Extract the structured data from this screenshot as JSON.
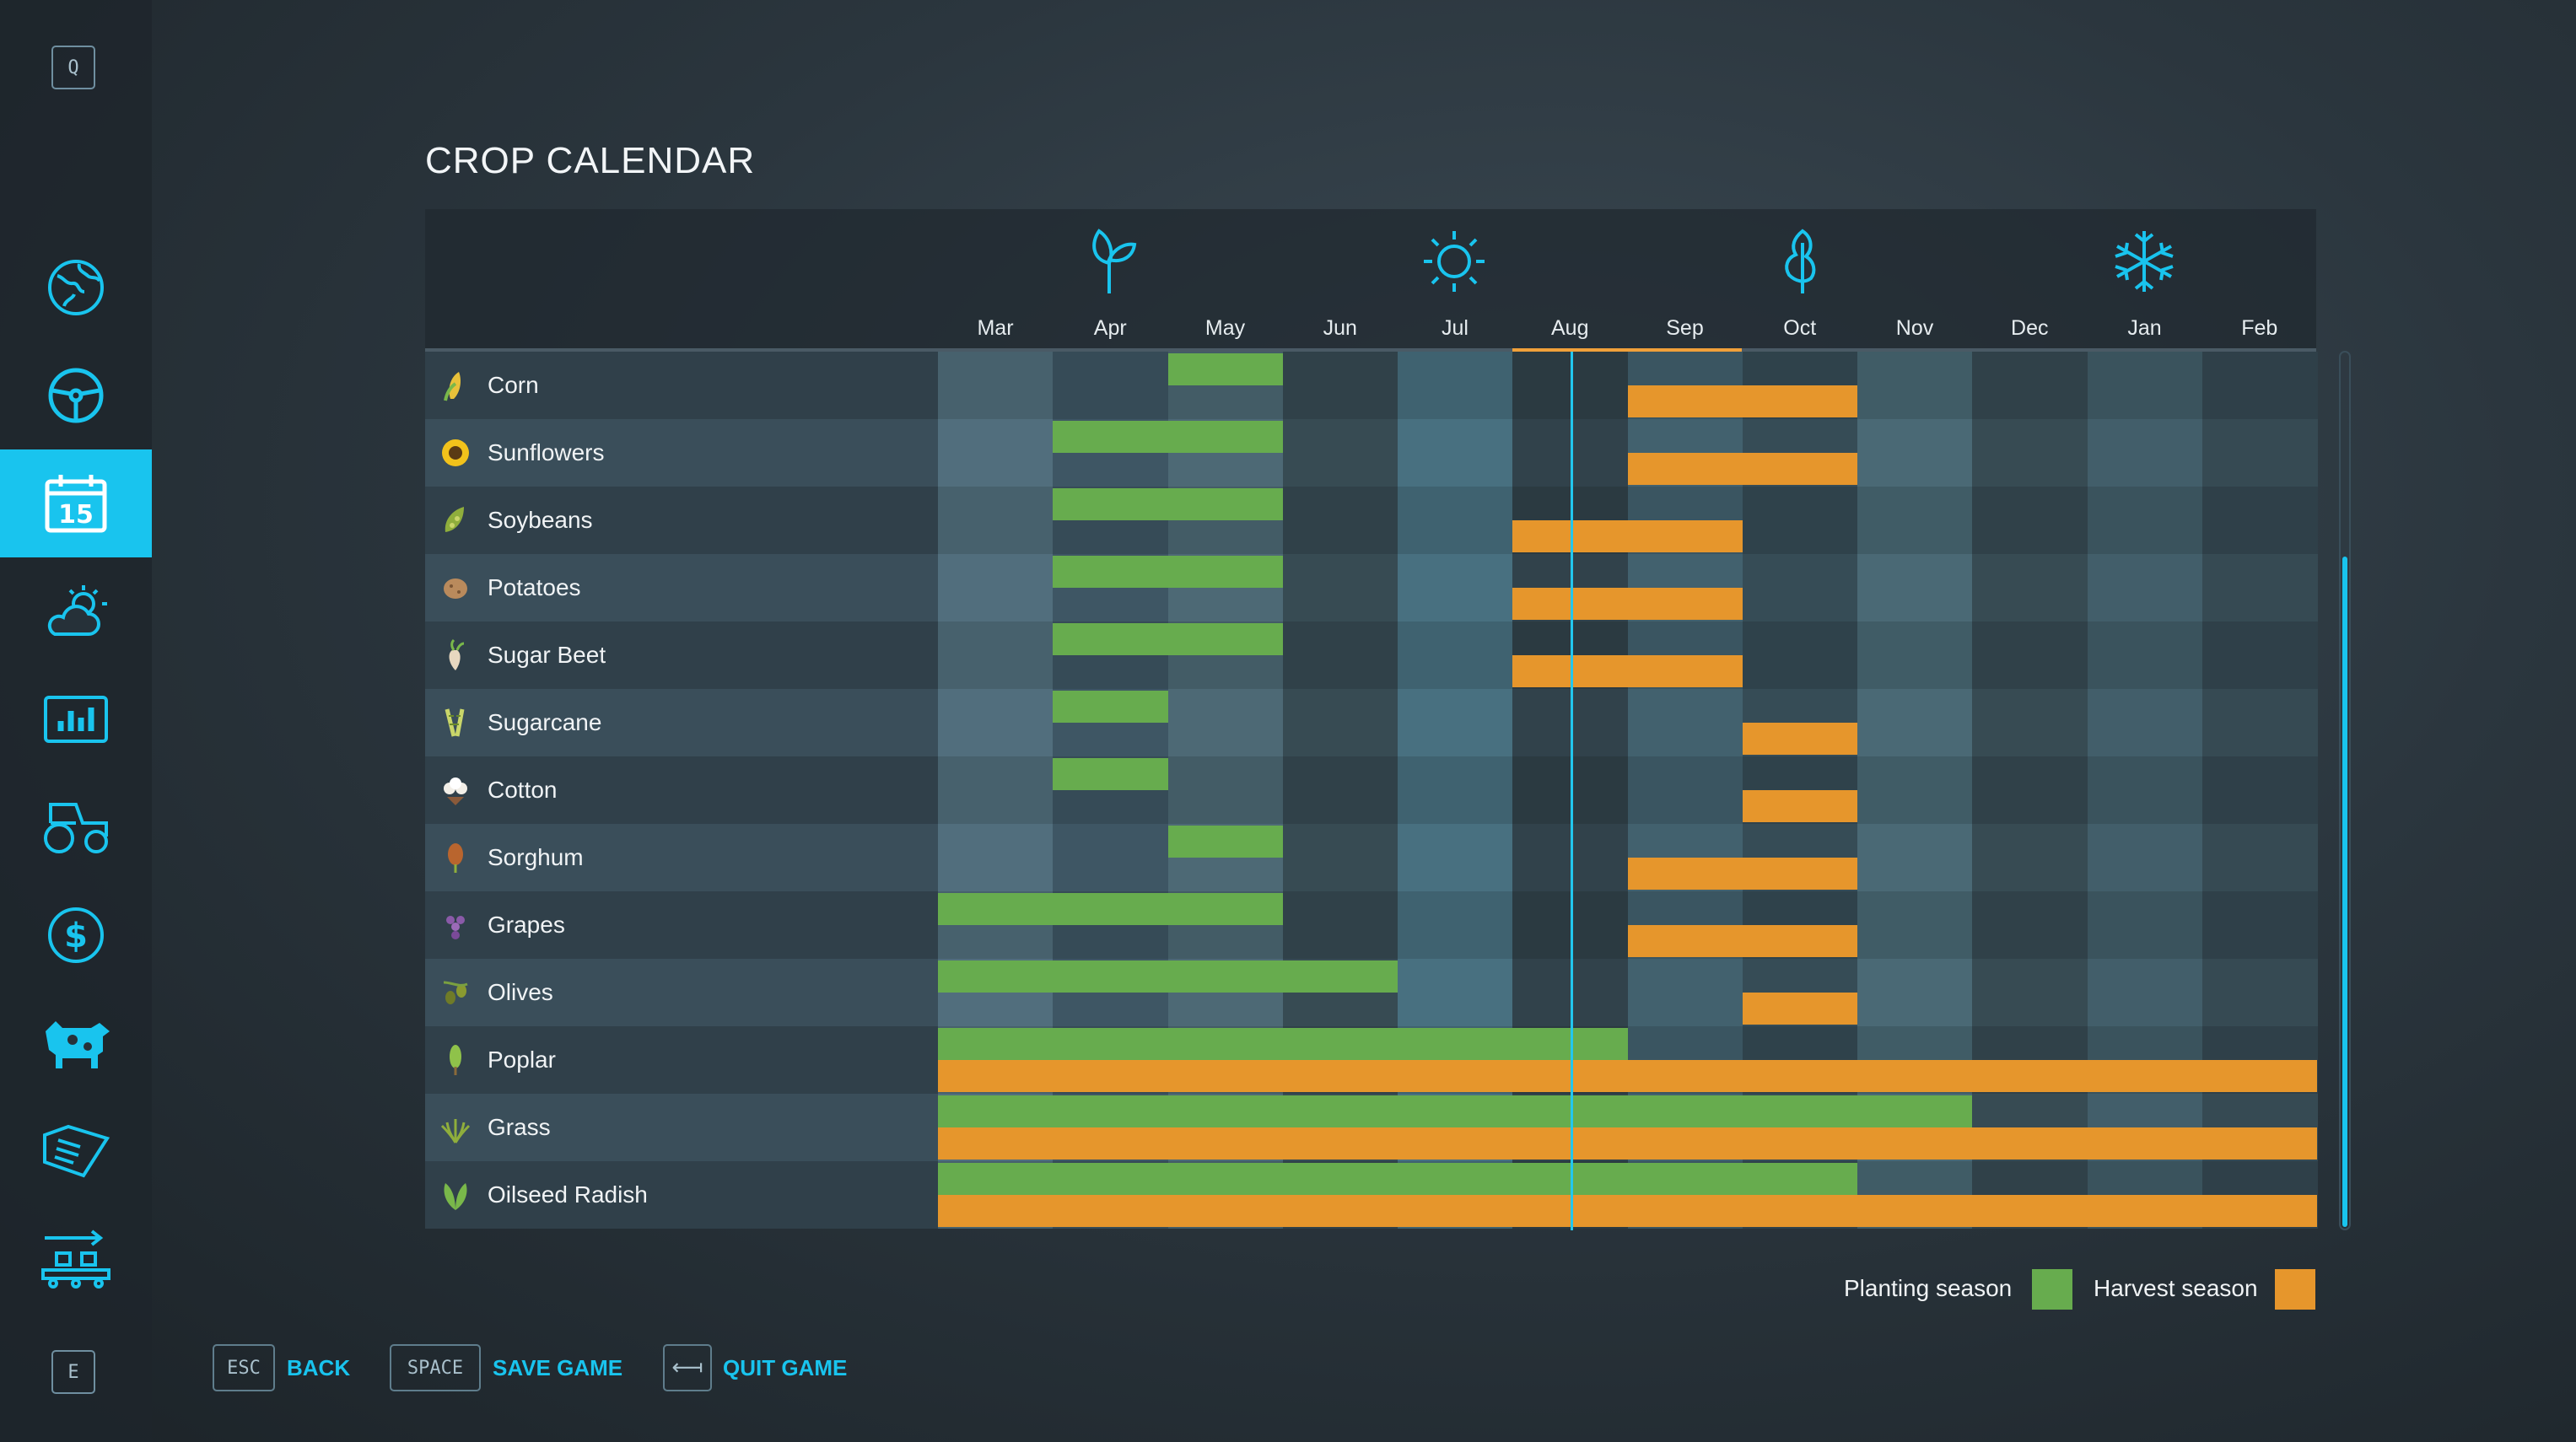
{
  "title": "CROP CALENDAR",
  "sidebar": {
    "top_key": "Q",
    "bottom_key": "E",
    "items": [
      {
        "name": "map-icon"
      },
      {
        "name": "steering-wheel-icon"
      },
      {
        "name": "calendar-icon",
        "label": "15",
        "active": true
      },
      {
        "name": "weather-icon"
      },
      {
        "name": "statistics-icon"
      },
      {
        "name": "tractor-icon"
      },
      {
        "name": "dollar-icon"
      },
      {
        "name": "cow-icon"
      },
      {
        "name": "help-book-icon"
      },
      {
        "name": "production-icon"
      }
    ]
  },
  "calendar": {
    "months": [
      "Mar",
      "Apr",
      "May",
      "Jun",
      "Jul",
      "Aug",
      "Sep",
      "Oct",
      "Nov",
      "Dec",
      "Jan",
      "Feb"
    ],
    "current_month": "Aug",
    "season_icons": [
      "spring-sprout-icon",
      "summer-sun-icon",
      "autumn-leaf-icon",
      "winter-snowflake-icon"
    ],
    "crops": [
      {
        "name": "Corn",
        "icon": "corn-icon",
        "planting": [
          [
            2,
            3
          ]
        ],
        "harvest": [
          [
            6,
            8
          ]
        ]
      },
      {
        "name": "Sunflowers",
        "icon": "sunflower-icon",
        "planting": [
          [
            1,
            3
          ]
        ],
        "harvest": [
          [
            6,
            8
          ]
        ]
      },
      {
        "name": "Soybeans",
        "icon": "soybean-icon",
        "planting": [
          [
            1,
            3
          ]
        ],
        "harvest": [
          [
            5,
            7
          ]
        ]
      },
      {
        "name": "Potatoes",
        "icon": "potato-icon",
        "planting": [
          [
            1,
            3
          ]
        ],
        "harvest": [
          [
            5,
            7
          ]
        ]
      },
      {
        "name": "Sugar Beet",
        "icon": "sugar-beet-icon",
        "planting": [
          [
            1,
            3
          ]
        ],
        "harvest": [
          [
            5,
            7
          ]
        ]
      },
      {
        "name": "Sugarcane",
        "icon": "sugarcane-icon",
        "planting": [
          [
            1,
            2
          ]
        ],
        "harvest": [
          [
            7,
            8
          ]
        ]
      },
      {
        "name": "Cotton",
        "icon": "cotton-icon",
        "planting": [
          [
            1,
            2
          ]
        ],
        "harvest": [
          [
            7,
            8
          ]
        ]
      },
      {
        "name": "Sorghum",
        "icon": "sorghum-icon",
        "planting": [
          [
            2,
            3
          ]
        ],
        "harvest": [
          [
            6,
            8
          ]
        ]
      },
      {
        "name": "Grapes",
        "icon": "grapes-icon",
        "planting": [
          [
            0,
            3
          ]
        ],
        "harvest": [
          [
            6,
            8
          ]
        ]
      },
      {
        "name": "Olives",
        "icon": "olives-icon",
        "planting": [
          [
            0,
            4
          ]
        ],
        "harvest": [
          [
            7,
            8
          ]
        ]
      },
      {
        "name": "Poplar",
        "icon": "poplar-icon",
        "planting": [
          [
            0,
            6
          ]
        ],
        "harvest": [
          [
            0,
            12
          ]
        ]
      },
      {
        "name": "Grass",
        "icon": "grass-icon",
        "planting": [
          [
            0,
            9
          ]
        ],
        "harvest": [
          [
            0,
            12
          ]
        ]
      },
      {
        "name": "Oilseed Radish",
        "icon": "oilseed-radish-icon",
        "planting": [
          [
            0,
            8
          ]
        ],
        "harvest": [
          [
            0,
            12
          ]
        ]
      }
    ]
  },
  "legend": {
    "planting_label": "Planting season",
    "harvest_label": "Harvest season",
    "planting_color": "#67ac4e",
    "harvest_color": "#e6962c"
  },
  "footer": {
    "back_key": "ESC",
    "back_label": "BACK",
    "save_key": "SPACE",
    "save_label": "SAVE GAME",
    "quit_key": "⟻",
    "quit_label": "QUIT GAME"
  },
  "accent_color": "#19c4ee"
}
